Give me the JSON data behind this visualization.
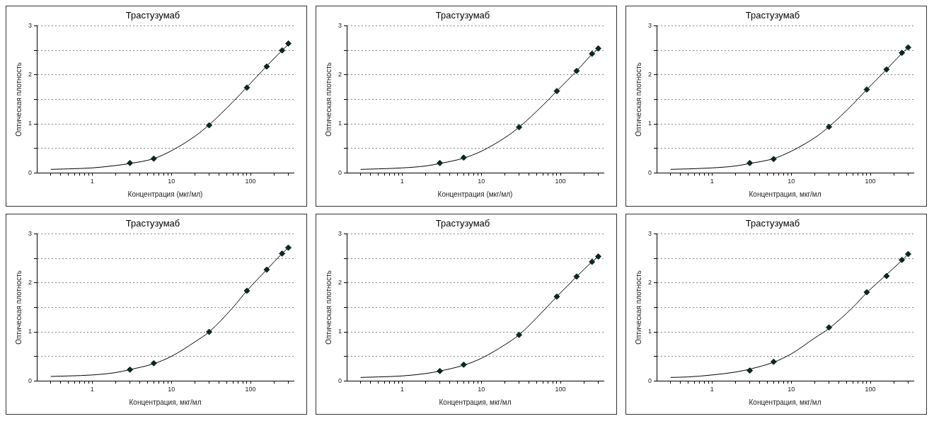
{
  "chart_data": [
    {
      "type": "scatter",
      "title": "Трастузумаб",
      "xlabel": "Концентрация (мкг/мл)",
      "ylabel": "Оптическая плотность",
      "log": "x",
      "xlim": [
        0.2,
        350
      ],
      "xticks": [
        {
          "value": 0.3,
          "label": null
        },
        {
          "value": 0.4,
          "label": null
        },
        {
          "value": 0.5,
          "label": null
        },
        {
          "value": 0.6,
          "label": null
        },
        {
          "value": 0.7,
          "label": null
        },
        {
          "value": 0.8,
          "label": null
        },
        {
          "value": 0.9,
          "label": null
        },
        1,
        {
          "value": 2,
          "label": null
        },
        {
          "value": 3,
          "label": null
        },
        {
          "value": 4,
          "label": null
        },
        {
          "value": 5,
          "label": null
        },
        {
          "value": 6,
          "label": null
        },
        {
          "value": 7,
          "label": null
        },
        {
          "value": 8,
          "label": null
        },
        {
          "value": 9,
          "label": null
        },
        10,
        {
          "value": 20,
          "label": null
        },
        {
          "value": 30,
          "label": null
        },
        {
          "value": 40,
          "label": null
        },
        {
          "value": 50,
          "label": null
        },
        {
          "value": 60,
          "label": null
        },
        {
          "value": 70,
          "label": null
        },
        {
          "value": 80,
          "label": null
        },
        {
          "value": 90,
          "label": null
        },
        100,
        {
          "value": 200,
          "label": null
        },
        {
          "value": 300,
          "label": null
        }
      ],
      "ylim": [
        0,
        3
      ],
      "yticks": [
        0,
        {
          "value": 0.5,
          "label": null
        },
        1,
        {
          "value": 1.5,
          "label": null
        },
        2,
        {
          "value": 2.5,
          "label": null
        },
        3
      ],
      "grid": "y",
      "legend": false,
      "marker": "diamond",
      "series": [
        {
          "type": "scatter",
          "color": "#0d2626",
          "x": [
            3,
            6,
            30,
            90,
            160,
            250,
            300
          ],
          "values": [
            0.2,
            0.29,
            0.97,
            1.74,
            2.17,
            2.5,
            2.64
          ]
        },
        {
          "type": "line",
          "color": "#000000",
          "marker": "none",
          "x": [
            0.3,
            0.5,
            1,
            2,
            3,
            6,
            10,
            20,
            30,
            60,
            90,
            160,
            250,
            300
          ],
          "values": [
            0.07,
            0.08,
            0.1,
            0.15,
            0.19,
            0.29,
            0.45,
            0.75,
            0.98,
            1.45,
            1.75,
            2.18,
            2.5,
            2.62
          ]
        }
      ]
    },
    {
      "type": "scatter",
      "title": "Трастузумаб",
      "xlabel": "Концентрация (мкг/мл)",
      "ylabel": "Оптическая плотность",
      "log": "x",
      "xlim": [
        0.2,
        350
      ],
      "xticks": [
        {
          "value": 0.3,
          "label": null
        },
        {
          "value": 0.4,
          "label": null
        },
        {
          "value": 0.5,
          "label": null
        },
        {
          "value": 0.6,
          "label": null
        },
        {
          "value": 0.7,
          "label": null
        },
        {
          "value": 0.8,
          "label": null
        },
        {
          "value": 0.9,
          "label": null
        },
        1,
        {
          "value": 2,
          "label": null
        },
        {
          "value": 3,
          "label": null
        },
        {
          "value": 4,
          "label": null
        },
        {
          "value": 5,
          "label": null
        },
        {
          "value": 6,
          "label": null
        },
        {
          "value": 7,
          "label": null
        },
        {
          "value": 8,
          "label": null
        },
        {
          "value": 9,
          "label": null
        },
        10,
        {
          "value": 20,
          "label": null
        },
        {
          "value": 30,
          "label": null
        },
        {
          "value": 40,
          "label": null
        },
        {
          "value": 50,
          "label": null
        },
        {
          "value": 60,
          "label": null
        },
        {
          "value": 70,
          "label": null
        },
        {
          "value": 80,
          "label": null
        },
        {
          "value": 90,
          "label": null
        },
        100,
        {
          "value": 200,
          "label": null
        },
        {
          "value": 300,
          "label": null
        }
      ],
      "ylim": [
        0,
        3
      ],
      "yticks": [
        0,
        {
          "value": 0.5,
          "label": null
        },
        1,
        {
          "value": 1.5,
          "label": null
        },
        2,
        {
          "value": 2.5,
          "label": null
        },
        3
      ],
      "grid": "y",
      "legend": false,
      "marker": "diamond",
      "series": [
        {
          "type": "scatter",
          "color": "#0d2626",
          "x": [
            3,
            6,
            30,
            90,
            160,
            250,
            300
          ],
          "values": [
            0.2,
            0.31,
            0.93,
            1.67,
            2.08,
            2.43,
            2.54
          ]
        },
        {
          "type": "line",
          "color": "#000000",
          "marker": "none",
          "x": [
            0.3,
            0.5,
            1,
            2,
            3,
            6,
            10,
            20,
            30,
            60,
            90,
            160,
            250,
            300
          ],
          "values": [
            0.07,
            0.08,
            0.1,
            0.14,
            0.19,
            0.3,
            0.44,
            0.72,
            0.93,
            1.38,
            1.67,
            2.08,
            2.42,
            2.53
          ]
        }
      ]
    },
    {
      "type": "scatter",
      "title": "Трастузумаб",
      "xlabel": "Концентрация, мкг/мл",
      "ylabel": "Оптическая плотность",
      "log": "x",
      "xlim": [
        0.2,
        350
      ],
      "xticks": [
        {
          "value": 0.3,
          "label": null
        },
        {
          "value": 0.4,
          "label": null
        },
        {
          "value": 0.5,
          "label": null
        },
        {
          "value": 0.6,
          "label": null
        },
        {
          "value": 0.7,
          "label": null
        },
        {
          "value": 0.8,
          "label": null
        },
        {
          "value": 0.9,
          "label": null
        },
        1,
        {
          "value": 2,
          "label": null
        },
        {
          "value": 3,
          "label": null
        },
        {
          "value": 4,
          "label": null
        },
        {
          "value": 5,
          "label": null
        },
        {
          "value": 6,
          "label": null
        },
        {
          "value": 7,
          "label": null
        },
        {
          "value": 8,
          "label": null
        },
        {
          "value": 9,
          "label": null
        },
        10,
        {
          "value": 20,
          "label": null
        },
        {
          "value": 30,
          "label": null
        },
        {
          "value": 40,
          "label": null
        },
        {
          "value": 50,
          "label": null
        },
        {
          "value": 60,
          "label": null
        },
        {
          "value": 70,
          "label": null
        },
        {
          "value": 80,
          "label": null
        },
        {
          "value": 90,
          "label": null
        },
        100,
        {
          "value": 200,
          "label": null
        },
        {
          "value": 300,
          "label": null
        }
      ],
      "ylim": [
        0,
        3
      ],
      "yticks": [
        0,
        {
          "value": 0.5,
          "label": null
        },
        1,
        {
          "value": 1.5,
          "label": null
        },
        2,
        {
          "value": 2.5,
          "label": null
        },
        3
      ],
      "grid": "y",
      "legend": false,
      "marker": "diamond",
      "series": [
        {
          "type": "scatter",
          "color": "#0d2626",
          "x": [
            3,
            6,
            30,
            90,
            160,
            250,
            300
          ],
          "values": [
            0.2,
            0.28,
            0.94,
            1.7,
            2.11,
            2.45,
            2.56
          ]
        },
        {
          "type": "line",
          "color": "#000000",
          "marker": "none",
          "x": [
            0.3,
            0.5,
            1,
            2,
            3,
            6,
            10,
            20,
            30,
            60,
            90,
            160,
            250,
            300
          ],
          "values": [
            0.07,
            0.08,
            0.1,
            0.14,
            0.19,
            0.29,
            0.44,
            0.72,
            0.94,
            1.4,
            1.7,
            2.11,
            2.44,
            2.56
          ]
        }
      ]
    },
    {
      "type": "scatter",
      "title": "Трастузумаб",
      "xlabel": "Концентрация, мкг/мл",
      "ylabel": "Оптическая плотность",
      "log": "x",
      "xlim": [
        0.2,
        350
      ],
      "xticks": [
        {
          "value": 0.3,
          "label": null
        },
        {
          "value": 0.4,
          "label": null
        },
        {
          "value": 0.5,
          "label": null
        },
        {
          "value": 0.6,
          "label": null
        },
        {
          "value": 0.7,
          "label": null
        },
        {
          "value": 0.8,
          "label": null
        },
        {
          "value": 0.9,
          "label": null
        },
        1,
        {
          "value": 2,
          "label": null
        },
        {
          "value": 3,
          "label": null
        },
        {
          "value": 4,
          "label": null
        },
        {
          "value": 5,
          "label": null
        },
        {
          "value": 6,
          "label": null
        },
        {
          "value": 7,
          "label": null
        },
        {
          "value": 8,
          "label": null
        },
        {
          "value": 9,
          "label": null
        },
        10,
        {
          "value": 20,
          "label": null
        },
        {
          "value": 30,
          "label": null
        },
        {
          "value": 40,
          "label": null
        },
        {
          "value": 50,
          "label": null
        },
        {
          "value": 60,
          "label": null
        },
        {
          "value": 70,
          "label": null
        },
        {
          "value": 80,
          "label": null
        },
        {
          "value": 90,
          "label": null
        },
        100,
        {
          "value": 200,
          "label": null
        },
        {
          "value": 300,
          "label": null
        }
      ],
      "ylim": [
        0,
        3
      ],
      "yticks": [
        0,
        {
          "value": 0.5,
          "label": null
        },
        1,
        {
          "value": 1.5,
          "label": null
        },
        2,
        {
          "value": 2.5,
          "label": null
        },
        3
      ],
      "grid": "y",
      "legend": false,
      "marker": "diamond",
      "series": [
        {
          "type": "scatter",
          "color": "#0d2626",
          "x": [
            3,
            6,
            30,
            90,
            160,
            250,
            300
          ],
          "values": [
            0.23,
            0.36,
            1.0,
            1.84,
            2.27,
            2.6,
            2.72
          ]
        },
        {
          "type": "line",
          "color": "#000000",
          "marker": "none",
          "x": [
            0.3,
            0.5,
            1,
            2,
            3,
            6,
            10,
            20,
            30,
            60,
            90,
            160,
            250,
            300
          ],
          "values": [
            0.09,
            0.1,
            0.12,
            0.17,
            0.23,
            0.35,
            0.5,
            0.8,
            1.0,
            1.5,
            1.84,
            2.27,
            2.6,
            2.72
          ]
        }
      ]
    },
    {
      "type": "scatter",
      "title": "Трастузумаб",
      "xlabel": "Концентрация, мкг/мл",
      "ylabel": "Оптическая плотность",
      "log": "x",
      "xlim": [
        0.2,
        350
      ],
      "xticks": [
        {
          "value": 0.3,
          "label": null
        },
        {
          "value": 0.4,
          "label": null
        },
        {
          "value": 0.5,
          "label": null
        },
        {
          "value": 0.6,
          "label": null
        },
        {
          "value": 0.7,
          "label": null
        },
        {
          "value": 0.8,
          "label": null
        },
        {
          "value": 0.9,
          "label": null
        },
        1,
        {
          "value": 2,
          "label": null
        },
        {
          "value": 3,
          "label": null
        },
        {
          "value": 4,
          "label": null
        },
        {
          "value": 5,
          "label": null
        },
        {
          "value": 6,
          "label": null
        },
        {
          "value": 7,
          "label": null
        },
        {
          "value": 8,
          "label": null
        },
        {
          "value": 9,
          "label": null
        },
        10,
        {
          "value": 20,
          "label": null
        },
        {
          "value": 30,
          "label": null
        },
        {
          "value": 40,
          "label": null
        },
        {
          "value": 50,
          "label": null
        },
        {
          "value": 60,
          "label": null
        },
        {
          "value": 70,
          "label": null
        },
        {
          "value": 80,
          "label": null
        },
        {
          "value": 90,
          "label": null
        },
        100,
        {
          "value": 200,
          "label": null
        },
        {
          "value": 300,
          "label": null
        }
      ],
      "ylim": [
        0,
        3
      ],
      "yticks": [
        0,
        {
          "value": 0.5,
          "label": null
        },
        1,
        {
          "value": 1.5,
          "label": null
        },
        2,
        {
          "value": 2.5,
          "label": null
        },
        3
      ],
      "grid": "y",
      "legend": false,
      "marker": "diamond",
      "series": [
        {
          "type": "scatter",
          "color": "#0d2626",
          "x": [
            3,
            6,
            30,
            90,
            160,
            250,
            300
          ],
          "values": [
            0.2,
            0.33,
            0.94,
            1.72,
            2.13,
            2.43,
            2.54
          ]
        },
        {
          "type": "line",
          "color": "#000000",
          "marker": "none",
          "x": [
            0.3,
            0.5,
            1,
            2,
            3,
            6,
            10,
            20,
            30,
            60,
            90,
            160,
            250,
            300
          ],
          "values": [
            0.07,
            0.08,
            0.1,
            0.15,
            0.2,
            0.32,
            0.46,
            0.74,
            0.94,
            1.42,
            1.72,
            2.13,
            2.43,
            2.54
          ]
        }
      ]
    },
    {
      "type": "scatter",
      "title": "Трастузумаб",
      "xlabel": "Концентрация, мкг/мл",
      "ylabel": "Оптическая плотность",
      "log": "x",
      "xlim": [
        0.2,
        350
      ],
      "xticks": [
        {
          "value": 0.3,
          "label": null
        },
        {
          "value": 0.4,
          "label": null
        },
        {
          "value": 0.5,
          "label": null
        },
        {
          "value": 0.6,
          "label": null
        },
        {
          "value": 0.7,
          "label": null
        },
        {
          "value": 0.8,
          "label": null
        },
        {
          "value": 0.9,
          "label": null
        },
        1,
        {
          "value": 2,
          "label": null
        },
        {
          "value": 3,
          "label": null
        },
        {
          "value": 4,
          "label": null
        },
        {
          "value": 5,
          "label": null
        },
        {
          "value": 6,
          "label": null
        },
        {
          "value": 7,
          "label": null
        },
        {
          "value": 8,
          "label": null
        },
        {
          "value": 9,
          "label": null
        },
        10,
        {
          "value": 20,
          "label": null
        },
        {
          "value": 30,
          "label": null
        },
        {
          "value": 40,
          "label": null
        },
        {
          "value": 50,
          "label": null
        },
        {
          "value": 60,
          "label": null
        },
        {
          "value": 70,
          "label": null
        },
        {
          "value": 80,
          "label": null
        },
        {
          "value": 90,
          "label": null
        },
        100,
        {
          "value": 200,
          "label": null
        },
        {
          "value": 300,
          "label": null
        }
      ],
      "ylim": [
        0,
        3
      ],
      "yticks": [
        0,
        {
          "value": 0.5,
          "label": null
        },
        1,
        {
          "value": 1.5,
          "label": null
        },
        2,
        {
          "value": 2.5,
          "label": null
        },
        3
      ],
      "grid": "y",
      "legend": false,
      "marker": "diamond",
      "series": [
        {
          "type": "scatter",
          "color": "#0d2626",
          "x": [
            3,
            6,
            30,
            90,
            160,
            250,
            300
          ],
          "values": [
            0.21,
            0.39,
            1.09,
            1.81,
            2.14,
            2.47,
            2.59
          ]
        },
        {
          "type": "line",
          "color": "#000000",
          "marker": "none",
          "x": [
            0.3,
            0.5,
            1,
            2,
            3,
            6,
            10,
            20,
            30,
            60,
            90,
            160,
            250,
            300
          ],
          "values": [
            0.07,
            0.08,
            0.12,
            0.18,
            0.24,
            0.38,
            0.55,
            0.88,
            1.07,
            1.5,
            1.8,
            2.17,
            2.46,
            2.59
          ]
        }
      ]
    }
  ]
}
